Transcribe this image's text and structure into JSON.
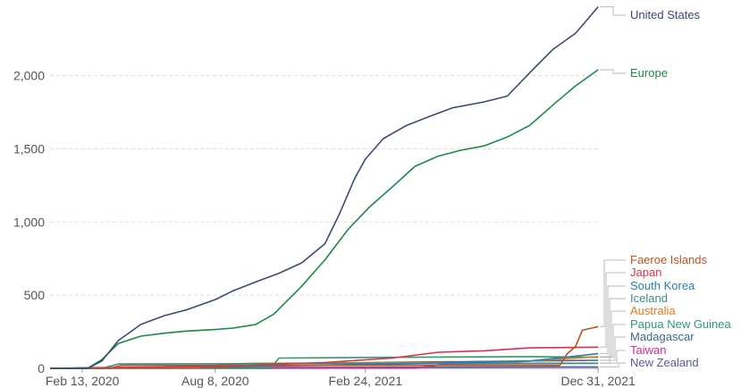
{
  "chart_data": {
    "type": "line",
    "title": "",
    "xlabel": "",
    "ylabel": "",
    "x_domain": [
      "2020-01-01",
      "2022-01-01"
    ],
    "ylim": [
      0,
      2480
    ],
    "y_ticks": [
      0,
      500,
      1000,
      1500,
      2000
    ],
    "y_tick_labels": [
      "0",
      "500",
      "1,000",
      "1,500",
      "2,000"
    ],
    "x_ticks": [
      "2020-02-13",
      "2020-08-08",
      "2021-02-24",
      "2021-12-31"
    ],
    "x_tick_labels": [
      "Feb 13, 2020",
      "Aug 8, 2020",
      "Feb 24, 2021",
      "Dec 31, 2021"
    ],
    "grid": true,
    "legend": "right, labels at line ends",
    "series": [
      {
        "name": "United States",
        "color": "#3a4a72",
        "points": [
          [
            "2020-01-01",
            0
          ],
          [
            "2020-02-20",
            0
          ],
          [
            "2020-03-10",
            50
          ],
          [
            "2020-04-01",
            190
          ],
          [
            "2020-05-01",
            300
          ],
          [
            "2020-06-01",
            360
          ],
          [
            "2020-07-01",
            400
          ],
          [
            "2020-08-08",
            470
          ],
          [
            "2020-09-01",
            530
          ],
          [
            "2020-10-01",
            590
          ],
          [
            "2020-11-01",
            650
          ],
          [
            "2020-12-01",
            720
          ],
          [
            "2021-01-01",
            850
          ],
          [
            "2021-01-20",
            1050
          ],
          [
            "2021-02-10",
            1300
          ],
          [
            "2021-02-24",
            1430
          ],
          [
            "2021-03-20",
            1570
          ],
          [
            "2021-04-20",
            1660
          ],
          [
            "2021-05-20",
            1720
          ],
          [
            "2021-06-20",
            1780
          ],
          [
            "2021-08-01",
            1820
          ],
          [
            "2021-09-01",
            1860
          ],
          [
            "2021-10-01",
            2020
          ],
          [
            "2021-11-01",
            2180
          ],
          [
            "2021-12-01",
            2290
          ],
          [
            "2021-12-31",
            2470
          ]
        ]
      },
      {
        "name": "Europe",
        "color": "#1a8a4a",
        "points": [
          [
            "2020-01-01",
            0
          ],
          [
            "2020-02-20",
            0
          ],
          [
            "2020-03-10",
            60
          ],
          [
            "2020-04-01",
            170
          ],
          [
            "2020-05-01",
            220
          ],
          [
            "2020-06-01",
            240
          ],
          [
            "2020-07-01",
            255
          ],
          [
            "2020-08-08",
            265
          ],
          [
            "2020-09-01",
            275
          ],
          [
            "2020-10-01",
            300
          ],
          [
            "2020-10-25",
            370
          ],
          [
            "2020-12-01",
            560
          ],
          [
            "2021-01-01",
            740
          ],
          [
            "2021-02-01",
            950
          ],
          [
            "2021-03-01",
            1100
          ],
          [
            "2021-04-01",
            1240
          ],
          [
            "2021-05-01",
            1380
          ],
          [
            "2021-06-01",
            1450
          ],
          [
            "2021-07-01",
            1490
          ],
          [
            "2021-08-01",
            1520
          ],
          [
            "2021-09-01",
            1580
          ],
          [
            "2021-10-01",
            1660
          ],
          [
            "2021-11-01",
            1800
          ],
          [
            "2021-12-01",
            1930
          ],
          [
            "2021-12-31",
            2040
          ]
        ]
      },
      {
        "name": "Faeroe Islands",
        "color": "#b8541e",
        "points": [
          [
            "2020-01-01",
            0
          ],
          [
            "2020-03-20",
            0
          ],
          [
            "2020-04-05",
            20
          ],
          [
            "2021-11-10",
            20
          ],
          [
            "2021-11-20",
            100
          ],
          [
            "2021-12-01",
            150
          ],
          [
            "2021-12-10",
            260
          ],
          [
            "2021-12-31",
            285
          ]
        ]
      },
      {
        "name": "Japan",
        "color": "#d9304f",
        "points": [
          [
            "2020-01-01",
            0
          ],
          [
            "2020-04-01",
            5
          ],
          [
            "2020-08-01",
            10
          ],
          [
            "2021-01-01",
            40
          ],
          [
            "2021-04-01",
            70
          ],
          [
            "2021-06-01",
            110
          ],
          [
            "2021-08-01",
            120
          ],
          [
            "2021-10-01",
            140
          ],
          [
            "2021-12-31",
            145
          ]
        ]
      },
      {
        "name": "South Korea",
        "color": "#2a7fb0",
        "points": [
          [
            "2020-01-01",
            0
          ],
          [
            "2020-03-01",
            5
          ],
          [
            "2021-01-01",
            20
          ],
          [
            "2021-06-01",
            35
          ],
          [
            "2021-10-01",
            50
          ],
          [
            "2021-12-31",
            100
          ]
        ]
      },
      {
        "name": "Iceland",
        "color": "#3a8a8a",
        "points": [
          [
            "2020-01-01",
            0
          ],
          [
            "2020-03-10",
            0
          ],
          [
            "2020-04-01",
            30
          ],
          [
            "2021-12-31",
            35
          ]
        ]
      },
      {
        "name": "Australia",
        "color": "#e07b22",
        "points": [
          [
            "2020-01-01",
            0
          ],
          [
            "2020-07-15",
            4
          ],
          [
            "2020-08-25",
            30
          ],
          [
            "2020-10-01",
            35
          ],
          [
            "2021-09-01",
            40
          ],
          [
            "2021-12-31",
            80
          ]
        ]
      },
      {
        "name": "Papua New Guinea",
        "color": "#2e9b6b",
        "points": [
          [
            "2020-01-01",
            0
          ],
          [
            "2020-10-20",
            0
          ],
          [
            "2020-11-01",
            70
          ],
          [
            "2021-04-01",
            75
          ],
          [
            "2021-10-01",
            80
          ],
          [
            "2021-12-31",
            75
          ]
        ]
      },
      {
        "name": "Madagascar",
        "color": "#3e6a8a",
        "points": [
          [
            "2020-01-01",
            0
          ],
          [
            "2020-07-01",
            0
          ],
          [
            "2020-09-01",
            30
          ],
          [
            "2021-12-31",
            55
          ]
        ]
      },
      {
        "name": "Taiwan",
        "color": "#d02e91",
        "points": [
          [
            "2020-01-01",
            0
          ],
          [
            "2021-05-01",
            1
          ],
          [
            "2021-06-15",
            30
          ],
          [
            "2021-12-31",
            35
          ]
        ]
      },
      {
        "name": "New Zealand",
        "color": "#5a5aa8",
        "points": [
          [
            "2020-01-01",
            0
          ],
          [
            "2020-04-01",
            4
          ],
          [
            "2021-12-31",
            10
          ]
        ]
      }
    ]
  }
}
